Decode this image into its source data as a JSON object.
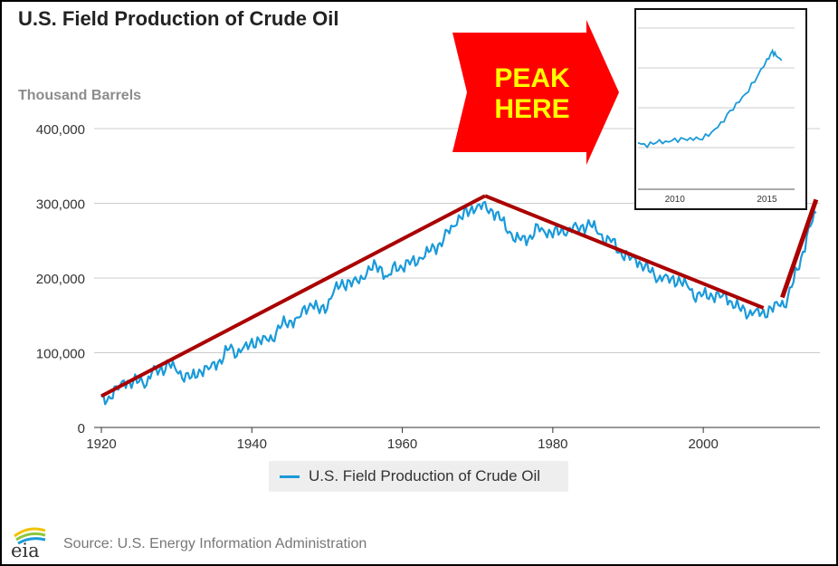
{
  "title": "U.S. Field Production of Crude Oil",
  "ylabel": "Thousand Barrels",
  "legend": {
    "label": "U.S. Field Production of Crude Oil"
  },
  "source": "Source: U.S. Energy Information Administration",
  "logo_text": "eia",
  "annotation": {
    "line1": "PEAK",
    "line2": "HERE",
    "arrow_color": "#ff0000",
    "text_color": "#ffff00"
  },
  "colors": {
    "series": "#1a9ad9",
    "trend": "#aa0000",
    "grid": "#cccccc",
    "axis": "#333333"
  },
  "chart_data": [
    {
      "type": "line",
      "title": "U.S. Field Production of Crude Oil",
      "ylabel": "Thousand Barrels",
      "xlabel": "",
      "xlim": [
        1920,
        2015.5
      ],
      "ylim": [
        0,
        400000
      ],
      "xticks": [
        1920,
        1940,
        1960,
        1980,
        2000
      ],
      "yticks": [
        0,
        100000,
        200000,
        300000,
        400000
      ],
      "ytick_labels": [
        "0",
        "100,000",
        "200,000",
        "300,000",
        "400,000"
      ],
      "grid": true,
      "legend_position": "bottom",
      "series": [
        {
          "name": "U.S. Field Production of Crude Oil",
          "x": [
            1920,
            1921,
            1922,
            1923,
            1924,
            1925,
            1926,
            1927,
            1928,
            1929,
            1930,
            1931,
            1932,
            1933,
            1934,
            1935,
            1936,
            1937,
            1938,
            1939,
            1940,
            1941,
            1942,
            1943,
            1944,
            1945,
            1946,
            1947,
            1948,
            1949,
            1950,
            1951,
            1952,
            1953,
            1954,
            1955,
            1956,
            1957,
            1958,
            1959,
            1960,
            1961,
            1962,
            1963,
            1964,
            1965,
            1966,
            1967,
            1968,
            1969,
            1970,
            1971,
            1972,
            1973,
            1974,
            1975,
            1976,
            1977,
            1978,
            1979,
            1980,
            1981,
            1982,
            1983,
            1984,
            1985,
            1986,
            1987,
            1988,
            1989,
            1990,
            1991,
            1992,
            1993,
            1994,
            1995,
            1996,
            1997,
            1998,
            1999,
            2000,
            2001,
            2002,
            2003,
            2004,
            2005,
            2006,
            2007,
            2008,
            2009,
            2010,
            2011,
            2012,
            2013,
            2014,
            2015
          ],
          "values": [
            37000,
            40000,
            48000,
            62000,
            60000,
            63000,
            62000,
            75000,
            76000,
            85000,
            76000,
            71000,
            66000,
            76000,
            76000,
            83000,
            92000,
            107000,
            102000,
            105000,
            112000,
            116000,
            116000,
            125000,
            138000,
            142000,
            143000,
            155000,
            168000,
            155000,
            165000,
            185000,
            190000,
            195000,
            192000,
            207000,
            215000,
            215000,
            200000,
            212000,
            216000,
            220000,
            225000,
            232000,
            238000,
            245000,
            258000,
            275000,
            285000,
            290000,
            298000,
            292000,
            290000,
            280000,
            265000,
            255000,
            250000,
            255000,
            265000,
            262000,
            262000,
            262000,
            265000,
            265000,
            268000,
            272000,
            262000,
            253000,
            248000,
            234000,
            226000,
            224000,
            218000,
            209000,
            202000,
            198000,
            197000,
            195000,
            188000,
            178000,
            177000,
            177000,
            175000,
            173000,
            167000,
            158000,
            155000,
            154000,
            150000,
            160000,
            162000,
            170000,
            197000,
            225000,
            264000,
            287000
          ]
        },
        {
          "name": "",
          "x": [
            1920,
            1971,
            2008,
            2015
          ],
          "values": [
            42000,
            310000,
            160000,
            305000
          ]
        }
      ]
    },
    {
      "type": "line",
      "xlim": [
        2008,
        2016.5
      ],
      "xticks": [
        2010,
        2015
      ],
      "grid": true,
      "series": [
        {
          "name": "",
          "x": [
            2008,
            2008.5,
            2009,
            2009.5,
            2010,
            2010.5,
            2011,
            2011.5,
            2012,
            2012.5,
            2013,
            2013.5,
            2014,
            2014.5,
            2015,
            2015.3,
            2015.5,
            2015.8
          ],
          "values": [
            157000,
            154000,
            159000,
            158000,
            160000,
            161000,
            162000,
            163000,
            170000,
            180000,
            195000,
            208000,
            222000,
            240000,
            258000,
            268000,
            264000,
            258000
          ]
        }
      ]
    }
  ]
}
